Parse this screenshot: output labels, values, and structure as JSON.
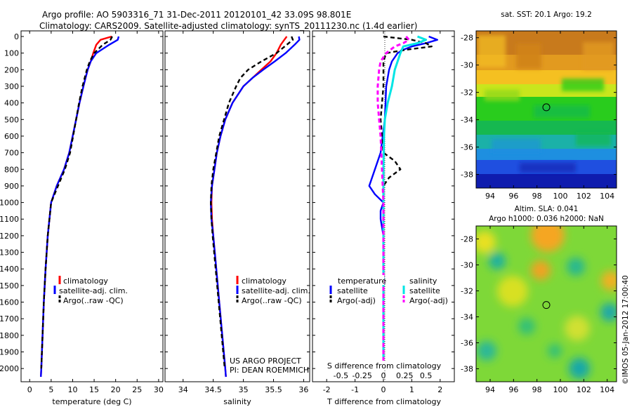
{
  "header": {
    "line1": "Argo profile: AO 5903316_71 31-Dec-2011 20120101_42 33.09S 98.801E",
    "line2": "Climatology: CARS2009. Satellite-adjusted climatology: synTS_20111230.nc (1.4d earlier)"
  },
  "colors": {
    "climatology": "#ff0000",
    "satellite": "#0000ff",
    "argo": "#000000",
    "salinity_satellite": "#00e5e5",
    "salinity_argo": "#ff00ff"
  },
  "legends": {
    "profile": [
      "climatology",
      "satellite-adj. clim.",
      "Argo(..raw -QC)"
    ],
    "diff_temperature_title": "temperature",
    "diff_salinity_title": "salinity",
    "diff_items": [
      "satellite",
      "Argo(-adj)"
    ]
  },
  "credit": {
    "line1": "US ARGO PROJECT",
    "line2": "PI: DEAN ROEMMICH"
  },
  "map_titles": {
    "sst": "sat. SST: 20.1 Argo: 19.2",
    "sla_line1": "Altim. SLA: 0.041",
    "sla_line2": "Argo h1000: 0.036 h2000: NaN"
  },
  "watermark": "©IMOS 05-Jan-2012 17:00:40",
  "chart_data": [
    {
      "type": "line",
      "panel": "temperature",
      "xlabel": "temperature (deg C)",
      "xlim": [
        -2,
        31
      ],
      "ylim": [
        2050,
        0
      ],
      "x_ticks": [
        0,
        5,
        10,
        15,
        20,
        25,
        30
      ],
      "y_ticks": [
        0,
        100,
        200,
        300,
        400,
        500,
        600,
        700,
        800,
        900,
        1000,
        1100,
        1200,
        1300,
        1400,
        1500,
        1600,
        1700,
        1800,
        1900,
        2000
      ],
      "series": [
        {
          "name": "climatology",
          "depth": [
            0,
            20,
            50,
            100,
            150,
            200,
            250,
            300,
            400,
            500,
            600,
            700,
            800,
            900,
            1000,
            1200,
            1400,
            1600,
            1800,
            2000,
            2050
          ],
          "values": [
            19.1,
            16.5,
            15.5,
            14.8,
            14.2,
            13.5,
            13.0,
            12.5,
            11.6,
            10.8,
            10.0,
            9.2,
            8.0,
            6.3,
            5.0,
            4.2,
            3.7,
            3.3,
            3.0,
            2.7,
            2.6
          ]
        },
        {
          "name": "satellite-adj. clim.",
          "depth": [
            0,
            20,
            50,
            100,
            150,
            200,
            250,
            300,
            400,
            500,
            600,
            700,
            800,
            900,
            1000,
            1200,
            1400,
            1600,
            1800,
            2000,
            2050
          ],
          "values": [
            20.7,
            20.5,
            18.5,
            15.5,
            14.2,
            13.5,
            13.0,
            12.5,
            11.6,
            10.8,
            10.0,
            9.2,
            8.0,
            6.3,
            5.0,
            4.2,
            3.7,
            3.3,
            3.0,
            2.7,
            2.6
          ]
        },
        {
          "name": "Argo(..raw -QC)",
          "depth": [
            0,
            20,
            50,
            100,
            150,
            200,
            250,
            300,
            400,
            500,
            600,
            700,
            800,
            900,
            1000,
            1200,
            1400,
            1600,
            1800,
            2000
          ],
          "values": [
            19.2,
            18.8,
            17.0,
            15.0,
            14.0,
            13.3,
            12.8,
            12.3,
            11.5,
            10.8,
            10.1,
            9.4,
            8.2,
            6.6,
            5.0,
            4.2,
            3.7,
            3.3,
            3.0,
            2.7
          ]
        }
      ]
    },
    {
      "type": "line",
      "panel": "salinity",
      "xlabel": "salinity",
      "xlim": [
        33.7,
        36.1
      ],
      "ylim": [
        2050,
        0
      ],
      "x_ticks": [
        34,
        34.5,
        35,
        35.5,
        36
      ],
      "series": [
        {
          "name": "climatology",
          "depth": [
            0,
            20,
            50,
            100,
            150,
            200,
            250,
            300,
            400,
            500,
            600,
            700,
            800,
            900,
            1000,
            1100,
            1200,
            1400,
            1600,
            1800,
            2000,
            2050
          ],
          "values": [
            35.72,
            35.68,
            35.62,
            35.55,
            35.45,
            35.3,
            35.15,
            35.0,
            34.82,
            34.7,
            34.62,
            34.56,
            34.52,
            34.48,
            34.47,
            34.48,
            34.5,
            34.55,
            34.6,
            34.65,
            34.7,
            34.71
          ]
        },
        {
          "name": "satellite-adj. clim.",
          "depth": [
            0,
            20,
            50,
            100,
            150,
            200,
            250,
            300,
            400,
            500,
            600,
            700,
            800,
            900,
            1000,
            1100,
            1200,
            1400,
            1600,
            1800,
            2000,
            2050
          ],
          "values": [
            35.92,
            35.93,
            35.85,
            35.7,
            35.52,
            35.33,
            35.15,
            35.0,
            34.82,
            34.7,
            34.62,
            34.56,
            34.52,
            34.48,
            34.46,
            34.47,
            34.5,
            34.55,
            34.6,
            34.65,
            34.7,
            34.71
          ]
        },
        {
          "name": "Argo(..raw -QC)",
          "depth": [
            0,
            20,
            50,
            100,
            150,
            200,
            250,
            300,
            400,
            500,
            600,
            700,
            800,
            900,
            1000,
            1100,
            1200,
            1400,
            1600,
            1800,
            2000
          ],
          "values": [
            35.8,
            35.82,
            35.72,
            35.55,
            35.3,
            35.08,
            34.95,
            34.88,
            34.76,
            34.68,
            34.6,
            34.55,
            34.5,
            34.47,
            34.46,
            34.47,
            34.49,
            34.54,
            34.59,
            34.64,
            34.69
          ]
        }
      ]
    },
    {
      "type": "line",
      "panel": "difference",
      "xlabel": "T difference from climatology",
      "x2label": "S difference from climatology",
      "xlim": [
        -2.5,
        2.5
      ],
      "x_ticks": [
        -2,
        -1,
        0,
        1,
        2
      ],
      "x2_ticks": [
        "-0.5",
        "-0.25",
        "0",
        "0.25",
        "0.5"
      ],
      "ylim": [
        2050,
        0
      ],
      "series": [
        {
          "name": "temperature satellite",
          "depth": [
            0,
            20,
            40,
            60,
            80,
            100,
            150,
            200,
            300,
            500,
            700,
            800,
            900,
            950,
            1000,
            1050,
            1100,
            1200,
            1300,
            1500,
            2000
          ],
          "values": [
            1.6,
            1.9,
            1.5,
            1.0,
            0.7,
            0.5,
            0.3,
            0.2,
            0.1,
            0.05,
            -0.1,
            -0.3,
            -0.5,
            -0.3,
            0,
            -0.1,
            -0.1,
            0,
            0,
            0,
            0
          ]
        },
        {
          "name": "temperature Argo(-adj)",
          "depth": [
            0,
            20,
            40,
            60,
            80,
            100,
            150,
            200,
            300,
            500,
            700,
            750,
            800,
            850,
            900,
            1000,
            1200,
            1500,
            2000
          ],
          "values": [
            0.0,
            1.0,
            1.5,
            1.7,
            0.8,
            0.1,
            0.0,
            0.0,
            0.0,
            -0.1,
            0.0,
            0.4,
            0.6,
            0.2,
            0.0,
            0.0,
            0.0,
            0.0,
            0.0
          ]
        },
        {
          "name": "salinity satellite",
          "depth": [
            0,
            20,
            40,
            60,
            100,
            150,
            200,
            300,
            400,
            500,
            600,
            800,
            1000,
            1200,
            1500,
            2000
          ],
          "values": [
            1.2,
            1.5,
            1.2,
            0.7,
            0.6,
            0.5,
            0.4,
            0.3,
            0.15,
            0.05,
            0.02,
            0.0,
            0.0,
            0.0,
            0.0,
            0.0
          ]
        },
        {
          "name": "salinity Argo(-adj)",
          "depth": [
            0,
            20,
            40,
            60,
            100,
            150,
            200,
            300,
            400,
            500,
            600,
            800,
            1000,
            1200,
            1500,
            2000
          ],
          "values": [
            0.8,
            0.9,
            0.7,
            0.4,
            0.1,
            -0.1,
            -0.15,
            -0.2,
            -0.2,
            -0.15,
            -0.1,
            -0.05,
            0.0,
            0.0,
            0.0,
            0.0
          ]
        }
      ]
    },
    {
      "type": "heatmap",
      "panel": "sst_map",
      "title": "sat. SST: 20.1 Argo: 19.2",
      "xlim": [
        92.8,
        104.8
      ],
      "ylim": [
        -39.0,
        -27.5
      ],
      "x_ticks": [
        94,
        96,
        98,
        100,
        102,
        104
      ],
      "y_ticks": [
        -28,
        -30,
        -32,
        -34,
        -36,
        -38
      ],
      "marker": {
        "lon": 98.8,
        "lat": -33.09
      }
    },
    {
      "type": "heatmap",
      "panel": "sla_map",
      "title": "Altim. SLA: 0.041",
      "xlim": [
        92.8,
        104.8
      ],
      "ylim": [
        -39.0,
        -27.0
      ],
      "x_ticks": [
        94,
        96,
        98,
        100,
        102,
        104
      ],
      "y_ticks": [
        -28,
        -30,
        -32,
        -34,
        -36,
        -38
      ],
      "marker": {
        "lon": 98.8,
        "lat": -33.09
      }
    }
  ]
}
